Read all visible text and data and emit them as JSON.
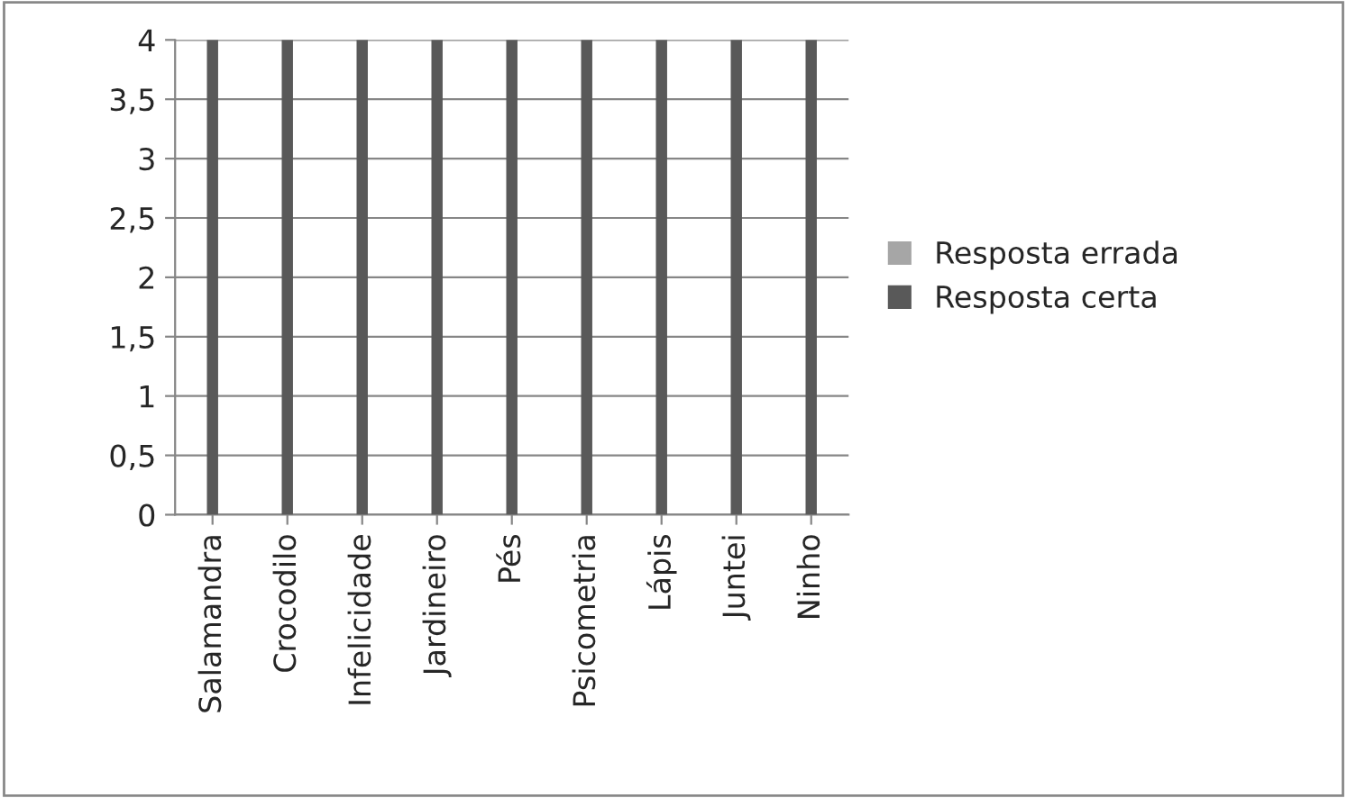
{
  "chart_data": {
    "type": "bar",
    "stacked": true,
    "categories": [
      "Salamandra",
      "Crocodilo",
      "Infelicidade",
      "Jardineiro",
      "Pés",
      "Psicometria",
      "Lápis",
      "Juntei",
      "Ninho"
    ],
    "series": [
      {
        "name": "Resposta certa",
        "color": "#595959",
        "values": [
          4,
          4,
          4,
          4,
          4,
          4,
          4,
          4,
          4
        ]
      },
      {
        "name": "Resposta errada",
        "color": "#a6a6a6",
        "values": [
          0,
          0,
          0,
          0,
          0,
          0,
          0,
          0,
          0
        ]
      }
    ],
    "ylim": [
      0,
      4
    ],
    "yticks": [
      0,
      {
        "value": 0.5,
        "label": "0,5"
      },
      1,
      {
        "value": 1.5,
        "label": "1,5"
      },
      2,
      {
        "value": 2.5,
        "label": "2,5"
      },
      3,
      {
        "value": 3.5,
        "label": "3,5"
      },
      4
    ],
    "grid": "y",
    "legend": "right"
  }
}
